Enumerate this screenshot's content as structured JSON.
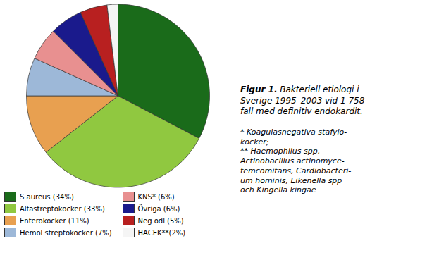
{
  "chart_data": {
    "type": "pie",
    "title": "Figur 1.",
    "subtitle": " Bakteriell etiologi i\nSverige 1995–2003 vid 1 758\nfall med definitiv endokardit.",
    "categories": [
      "S aureus (34%)",
      "Alfastreptokocker (33%)",
      "Enterokocker (11%)",
      "Hemol streptokocker (7%)",
      "KNS* (6%)",
      "Övriga (6%)",
      "Neg odl (5%)",
      "HACEK**(2%)"
    ],
    "values": [
      34,
      33,
      11,
      7,
      6,
      6,
      5,
      2
    ],
    "colors": [
      "#1a6b1a",
      "#90c840",
      "#e8a050",
      "#9db8d8",
      "#e89090",
      "#1a1a8c",
      "#b82020",
      "#f5f5f5"
    ],
    "legend": "lower left",
    "annotations": [
      "* Koagulasnegativa stafylo-\nkocker;\n** Haemophilus spp,\nActinobacillus actinomyce-\ntemcomitans, Cardiobacteri-\num hominis, Eikenella spp\noch Kingella kingae"
    ]
  }
}
